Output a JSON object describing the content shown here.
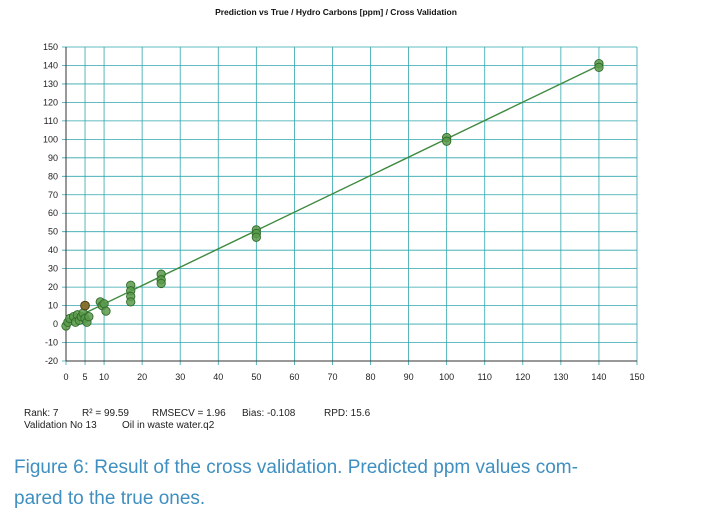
{
  "chart_data": {
    "type": "scatter",
    "title": "Prediction vs True  /  Hydro Carbons [ppm]  /  Cross Validation",
    "xlim": [
      0,
      150
    ],
    "ylim": [
      -20,
      150
    ],
    "x_ticks": [
      0,
      5,
      10,
      20,
      30,
      40,
      50,
      60,
      70,
      80,
      90,
      100,
      110,
      120,
      130,
      140,
      150
    ],
    "x_tick_labels": [
      "0",
      "5",
      "10",
      "20",
      "30",
      "40",
      "50",
      "60",
      "70",
      "80",
      "90",
      "100",
      "110",
      "120",
      "130",
      "140",
      "150"
    ],
    "y_ticks": [
      -20,
      -10,
      0,
      10,
      20,
      30,
      40,
      50,
      60,
      70,
      80,
      90,
      100,
      110,
      120,
      130,
      140,
      150
    ],
    "y_tick_labels": [
      "-20",
      "-10",
      "0",
      "10",
      "20",
      "30",
      "40",
      "50",
      "60",
      "70",
      "80",
      "90",
      "100",
      "110",
      "120",
      "130",
      "140",
      "150"
    ],
    "grid": true,
    "regression_line": {
      "x": [
        0,
        140
      ],
      "y": [
        1,
        140
      ]
    },
    "points": [
      {
        "x": 0,
        "y": -1
      },
      {
        "x": 0.5,
        "y": 1
      },
      {
        "x": 1,
        "y": 3
      },
      {
        "x": 2,
        "y": 4
      },
      {
        "x": 2.5,
        "y": 1
      },
      {
        "x": 3,
        "y": 5
      },
      {
        "x": 3.5,
        "y": 2
      },
      {
        "x": 4,
        "y": 4
      },
      {
        "x": 4.5,
        "y": 6
      },
      {
        "x": 5,
        "y": 10
      },
      {
        "x": 5,
        "y": 3
      },
      {
        "x": 5.5,
        "y": 1
      },
      {
        "x": 6,
        "y": 4
      },
      {
        "x": 9,
        "y": 12
      },
      {
        "x": 9.5,
        "y": 10
      },
      {
        "x": 10,
        "y": 11
      },
      {
        "x": 10.5,
        "y": 7
      },
      {
        "x": 17,
        "y": 21
      },
      {
        "x": 17,
        "y": 18
      },
      {
        "x": 17,
        "y": 15
      },
      {
        "x": 17,
        "y": 12
      },
      {
        "x": 25,
        "y": 27
      },
      {
        "x": 25,
        "y": 24
      },
      {
        "x": 25,
        "y": 22
      },
      {
        "x": 50,
        "y": 51
      },
      {
        "x": 50,
        "y": 49
      },
      {
        "x": 50,
        "y": 47
      },
      {
        "x": 100,
        "y": 101
      },
      {
        "x": 100,
        "y": 99
      },
      {
        "x": 140,
        "y": 141
      },
      {
        "x": 140,
        "y": 139
      }
    ],
    "highlight_points": [
      {
        "x": 5,
        "y": 10
      }
    ],
    "colors": {
      "grid": "#2ea6ac",
      "points": "#5a9a4a",
      "point_edge": "#2f6a2a",
      "line": "#3f8a3f",
      "highlight": "#8a6a2a"
    }
  },
  "stats": {
    "rank": "Rank: 7",
    "r2": "R² = 99.59",
    "rmsecv": "RMSECV = 1.96",
    "bias": "Bias: -0.108",
    "rpd": "RPD: 15.6",
    "validation": "Validation No 13",
    "dataset": "Oil in waste water.q2"
  },
  "caption": {
    "line1": "Figure 6: Result of the cross validation. Predicted ppm values com-",
    "line2": "pared to the true ones."
  }
}
